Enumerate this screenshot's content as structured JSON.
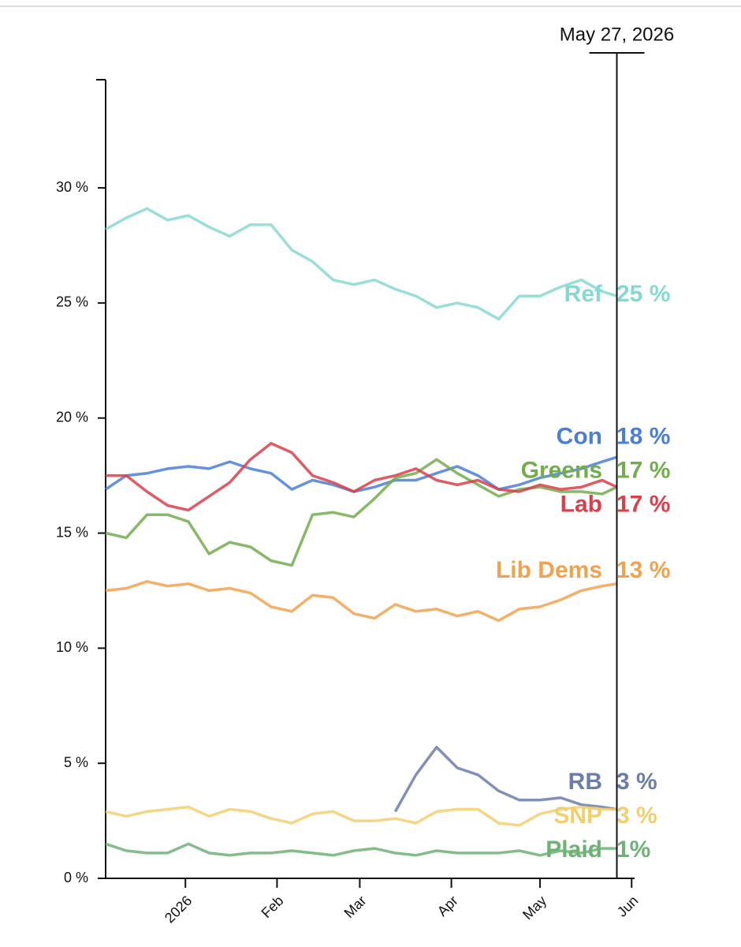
{
  "chart_data": {
    "type": "line",
    "x": [
      "2025-12-05",
      "2025-12-12",
      "2025-12-19",
      "2025-12-26",
      "2026-01-02",
      "2026-01-09",
      "2026-01-16",
      "2026-01-23",
      "2026-01-30",
      "2026-02-06",
      "2026-02-13",
      "2026-02-20",
      "2026-02-27",
      "2026-03-06",
      "2026-03-13",
      "2026-03-20",
      "2026-03-27",
      "2026-04-03",
      "2026-04-10",
      "2026-04-17",
      "2026-04-24",
      "2026-05-01",
      "2026-05-08",
      "2026-05-15",
      "2026-05-22",
      "2026-05-27"
    ],
    "series": [
      {
        "name": "Ref",
        "color": "#86d9d0",
        "end_label": {
          "value": 25,
          "label": "25 %"
        },
        "values": [
          28.2,
          28.7,
          29.1,
          28.6,
          28.8,
          28.3,
          27.9,
          28.4,
          28.4,
          27.3,
          26.8,
          26.0,
          25.8,
          26.0,
          25.6,
          25.3,
          24.8,
          25.0,
          24.8,
          24.3,
          25.3,
          25.3,
          25.7,
          26.0,
          25.5,
          25.3
        ]
      },
      {
        "name": "Con",
        "color": "#4a7fd4",
        "end_label": {
          "value": 18,
          "label": "18 %"
        },
        "values": [
          16.9,
          17.5,
          17.6,
          17.8,
          17.9,
          17.8,
          18.1,
          17.8,
          17.6,
          16.9,
          17.3,
          17.1,
          16.8,
          17.0,
          17.3,
          17.3,
          17.6,
          17.9,
          17.5,
          16.9,
          17.1,
          17.4,
          17.6,
          17.8,
          18.1,
          18.3
        ]
      },
      {
        "name": "Greens",
        "color": "#72ad4e",
        "end_label": {
          "value": 17,
          "label": "17 %"
        },
        "values": [
          15.0,
          14.8,
          15.8,
          15.8,
          15.5,
          14.1,
          14.6,
          14.4,
          13.8,
          13.6,
          15.8,
          15.9,
          15.7,
          16.5,
          17.4,
          17.6,
          18.2,
          17.6,
          17.1,
          16.6,
          16.9,
          17.0,
          16.8,
          16.8,
          16.7,
          17.0
        ]
      },
      {
        "name": "Lab",
        "color": "#d9404a",
        "end_label": {
          "value": 17,
          "label": "17 %"
        },
        "values": [
          17.5,
          17.5,
          16.8,
          16.2,
          16.0,
          16.6,
          17.2,
          18.2,
          18.9,
          18.5,
          17.5,
          17.2,
          16.8,
          17.3,
          17.5,
          17.8,
          17.3,
          17.1,
          17.3,
          16.9,
          16.8,
          17.1,
          16.9,
          17.0,
          17.3,
          17.0
        ]
      },
      {
        "name": "Lib Dems",
        "color": "#f0a24e",
        "end_label": {
          "value": 13,
          "label": "13 %"
        },
        "values": [
          12.5,
          12.6,
          12.9,
          12.7,
          12.8,
          12.5,
          12.6,
          12.4,
          11.8,
          11.6,
          12.3,
          12.2,
          11.5,
          11.3,
          11.9,
          11.6,
          11.7,
          11.4,
          11.6,
          11.2,
          11.7,
          11.8,
          12.1,
          12.5,
          12.7,
          12.8
        ]
      },
      {
        "name": "RB",
        "color": "#6b7da8",
        "end_label": {
          "value": 3,
          "label": "3 %"
        },
        "values": [
          null,
          null,
          null,
          null,
          null,
          null,
          null,
          null,
          null,
          null,
          null,
          null,
          null,
          null,
          2.9,
          4.5,
          5.7,
          4.8,
          4.5,
          3.8,
          3.4,
          3.4,
          3.5,
          3.2,
          3.1,
          3.0
        ]
      },
      {
        "name": "SNP",
        "color": "#f2cf6e",
        "end_label": {
          "value": 3,
          "label": "3 %"
        },
        "values": [
          2.9,
          2.7,
          2.9,
          3.0,
          3.1,
          2.7,
          3.0,
          2.9,
          2.6,
          2.4,
          2.8,
          2.9,
          2.5,
          2.5,
          2.6,
          2.4,
          2.9,
          3.0,
          3.0,
          2.4,
          2.3,
          2.8,
          3.0,
          3.1,
          3.0,
          3.0
        ]
      },
      {
        "name": "Plaid",
        "color": "#6fb276",
        "end_label": {
          "value": 1,
          "label": "1%"
        },
        "values": [
          1.5,
          1.2,
          1.1,
          1.1,
          1.5,
          1.1,
          1.0,
          1.1,
          1.1,
          1.2,
          1.1,
          1.0,
          1.2,
          1.3,
          1.1,
          1.0,
          1.2,
          1.1,
          1.1,
          1.1,
          1.2,
          1.0,
          1.2,
          1.1,
          1.3,
          1.3
        ]
      }
    ],
    "xlim": [
      "2025-12-05",
      "2026-06-02"
    ],
    "xticks": [
      {
        "value": "2026-01-01",
        "label": "2026"
      },
      {
        "value": "2026-02-01",
        "label": "Feb"
      },
      {
        "value": "2026-03-01",
        "label": "Mar"
      },
      {
        "value": "2026-04-01",
        "label": "Apr"
      },
      {
        "value": "2026-05-01",
        "label": "May"
      },
      {
        "value": "2026-06-01",
        "label": "Jun"
      }
    ],
    "ylim": [
      0,
      34.7
    ],
    "yticks": [
      {
        "value": 0,
        "label": "0 %"
      },
      {
        "value": 5,
        "label": "5 %"
      },
      {
        "value": 10,
        "label": "10 %"
      },
      {
        "value": 15,
        "label": "15 %"
      },
      {
        "value": 20,
        "label": "20 %"
      },
      {
        "value": 25,
        "label": "25 %"
      },
      {
        "value": 30,
        "label": "30 %"
      }
    ],
    "marker": {
      "date": "2026-05-27",
      "label": "May 27, 2026"
    }
  }
}
